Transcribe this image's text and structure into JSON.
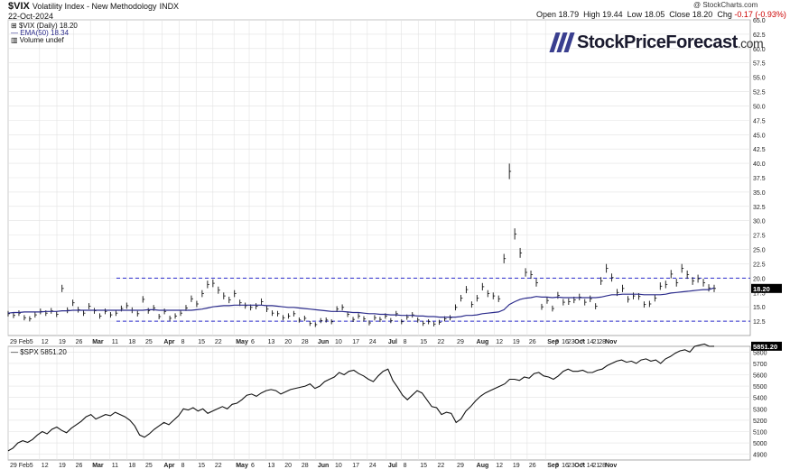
{
  "header": {
    "symbol": "$VIX",
    "name": "Volatility Index - New Methodology",
    "exchange": "INDX",
    "date": "22-Oct-2024",
    "credit": "@ StockCharts.com",
    "ohlc": {
      "open_label": "Open",
      "open": "18.79",
      "high_label": "High",
      "high": "19.44",
      "low_label": "Low",
      "low": "18.05",
      "close_label": "Close",
      "close": "18.20",
      "chg_label": "Chg",
      "chg": "-0.17 (-0.93%)"
    }
  },
  "logo": {
    "text": "StockPriceForecast",
    "suffix": ".com"
  },
  "legend": {
    "vix": "$VIX (Daily) 18.20",
    "ema": "EMA(50) 18.34",
    "volume": "Volume undef",
    "spx": "$SPX 5851.20"
  },
  "colors": {
    "price": "#111111",
    "ema": "#2c2c8c",
    "hline": "#2a2acc",
    "grid": "#e2e2e2",
    "label_bg": "#000000",
    "label_fg": "#ffffff"
  },
  "chart_data": [
    {
      "type": "line",
      "series": [
        {
          "name": "$VIX (Daily)",
          "values": [
            13.8,
            13.5,
            13.9,
            13.1,
            12.9,
            13.6,
            14.2,
            13.9,
            14.3,
            13.7,
            18.2,
            14.4,
            15.7,
            14.5,
            13.9,
            15.1,
            14.3,
            13.4,
            14.2,
            13.6,
            13.9,
            14.7,
            15.2,
            14.4,
            13.8,
            16.3,
            14.3,
            14.8,
            13.3,
            14.2,
            13.0,
            13.4,
            13.9,
            14.8,
            16.4,
            15.5,
            17.3,
            18.9,
            19.1,
            17.9,
            16.9,
            16.2,
            17.3,
            15.7,
            15.2,
            14.9,
            15.1,
            15.9,
            14.6,
            13.9,
            13.8,
            13.1,
            13.4,
            13.8,
            12.7,
            13.0,
            12.1,
            11.9,
            12.6,
            12.7,
            12.4,
            14.6,
            14.9,
            13.7,
            12.8,
            13.4,
            12.9,
            12.2,
            13.1,
            12.8,
            13.4,
            12.6,
            13.8,
            12.4,
            13.2,
            13.6,
            12.7,
            12.1,
            12.4,
            12.0,
            12.3,
            12.9,
            13.1,
            14.9,
            16.5,
            18.0,
            15.4,
            16.5,
            18.5,
            17.3,
            16.9,
            16.4,
            23.4,
            38.6,
            27.7,
            24.4,
            21.0,
            20.6,
            19.2,
            15.0,
            16.1,
            14.7,
            17.0,
            15.8,
            15.9,
            16.2,
            16.7,
            15.8,
            16.4,
            15.1,
            19.5,
            21.7,
            20.1,
            17.5,
            18.2,
            16.3,
            16.9,
            16.8,
            15.4,
            15.5,
            16.5,
            18.6,
            18.9,
            20.7,
            19.2,
            21.7,
            20.6,
            19.5,
            19.9,
            19.2,
            18.3,
            18.2
          ]
        },
        {
          "name": "EMA(50)",
          "values": [
            13.9,
            14.0,
            14.0,
            14.1,
            14.1,
            14.1,
            14.1,
            14.2,
            14.2,
            14.2,
            14.3,
            14.3,
            14.4,
            14.4,
            14.4,
            14.4,
            14.4,
            14.4,
            14.4,
            14.4,
            14.4,
            14.4,
            14.4,
            14.4,
            14.4,
            14.4,
            14.5,
            14.5,
            14.4,
            14.4,
            14.4,
            14.4,
            14.4,
            14.4,
            14.4,
            14.5,
            14.6,
            14.8,
            15.0,
            15.1,
            15.2,
            15.2,
            15.3,
            15.3,
            15.3,
            15.3,
            15.3,
            15.3,
            15.2,
            15.2,
            15.1,
            15.0,
            14.9,
            14.9,
            14.8,
            14.7,
            14.6,
            14.5,
            14.4,
            14.3,
            14.2,
            14.2,
            14.2,
            14.1,
            14.0,
            14.0,
            13.9,
            13.8,
            13.8,
            13.7,
            13.7,
            13.6,
            13.6,
            13.5,
            13.5,
            13.5,
            13.4,
            13.4,
            13.3,
            13.3,
            13.2,
            13.2,
            13.2,
            13.2,
            13.3,
            13.5,
            13.5,
            13.6,
            13.8,
            13.9,
            14.0,
            14.1,
            14.5,
            15.4,
            15.9,
            16.3,
            16.5,
            16.6,
            16.8,
            16.7,
            16.7,
            16.6,
            16.7,
            16.6,
            16.6,
            16.6,
            16.6,
            16.6,
            16.6,
            16.6,
            16.7,
            16.9,
            17.1,
            17.1,
            17.2,
            17.2,
            17.2,
            17.2,
            17.1,
            17.1,
            17.1,
            17.1,
            17.2,
            17.4,
            17.5,
            17.6,
            17.7,
            17.8,
            17.9,
            18.0,
            18.0,
            18.3
          ]
        }
      ],
      "hlines": [
        20.0,
        12.5
      ],
      "ylim": [
        10.0,
        65.0
      ],
      "y_ticks": [
        "12.5",
        "15.0",
        "17.5",
        "20.0",
        "22.5",
        "25.0",
        "27.5",
        "30.0",
        "32.5",
        "35.0",
        "37.5",
        "40.0",
        "42.5",
        "45.0",
        "47.5",
        "50.0",
        "52.5",
        "55.0",
        "57.5",
        "60.0",
        "62.5",
        "65.0"
      ],
      "last_value_label": "18.20",
      "grid": true
    },
    {
      "type": "line",
      "series": [
        {
          "name": "$SPX",
          "values": [
            4930,
            4955,
            5000,
            5020,
            5005,
            5030,
            5070,
            5100,
            5080,
            5120,
            5140,
            5110,
            5090,
            5130,
            5160,
            5190,
            5230,
            5250,
            5210,
            5230,
            5250,
            5240,
            5270,
            5250,
            5230,
            5200,
            5150,
            5070,
            5050,
            5080,
            5120,
            5150,
            5180,
            5160,
            5200,
            5240,
            5300,
            5290,
            5310,
            5280,
            5300,
            5260,
            5280,
            5300,
            5320,
            5300,
            5340,
            5350,
            5380,
            5420,
            5430,
            5410,
            5440,
            5460,
            5470,
            5460,
            5430,
            5450,
            5470,
            5480,
            5490,
            5500,
            5520,
            5480,
            5500,
            5540,
            5560,
            5580,
            5620,
            5600,
            5630,
            5640,
            5610,
            5590,
            5560,
            5540,
            5590,
            5630,
            5650,
            5550,
            5490,
            5420,
            5380,
            5420,
            5460,
            5440,
            5380,
            5320,
            5310,
            5250,
            5270,
            5260,
            5180,
            5210,
            5280,
            5320,
            5370,
            5410,
            5440,
            5460,
            5480,
            5500,
            5520,
            5560,
            5560,
            5550,
            5580,
            5570,
            5610,
            5620,
            5590,
            5580,
            5560,
            5590,
            5630,
            5650,
            5630,
            5630,
            5640,
            5620,
            5620,
            5640,
            5650,
            5680,
            5700,
            5720,
            5730,
            5710,
            5720,
            5700,
            5730,
            5740,
            5720,
            5730,
            5700,
            5740,
            5760,
            5790,
            5810,
            5820,
            5800,
            5850,
            5860,
            5870,
            5850,
            5851
          ]
        }
      ],
      "ylim": [
        4850,
        5850
      ],
      "y_ticks": [
        "4900",
        "5000",
        "5100",
        "5200",
        "5300",
        "5400",
        "5500",
        "5600",
        "5700",
        "5800"
      ],
      "last_value_label": "5851.20",
      "grid": true
    }
  ],
  "x_axis": {
    "labels": [
      {
        "pos": 0.0,
        "label": "29 Feb5",
        "bold": false
      },
      {
        "pos": 0.058,
        "label": "12",
        "bold": false
      },
      {
        "pos": 0.09,
        "label": "19",
        "bold": false
      },
      {
        "pos": 0.121,
        "label": "26",
        "bold": false
      },
      {
        "pos": 0.152,
        "label": "Mar",
        "bold": true
      },
      {
        "pos": 0.188,
        "label": "11",
        "bold": false
      },
      {
        "pos": 0.219,
        "label": "18",
        "bold": false
      },
      {
        "pos": 0.25,
        "label": "25",
        "bold": false
      },
      {
        "pos": 0.284,
        "label": "Apr",
        "bold": true
      },
      {
        "pos": 0.316,
        "label": "8",
        "bold": false
      },
      {
        "pos": 0.347,
        "label": "15",
        "bold": false
      },
      {
        "pos": 0.378,
        "label": "22",
        "bold": false
      },
      {
        "pos": 0.417,
        "label": "May",
        "bold": true
      },
      {
        "pos": 0.445,
        "label": "6",
        "bold": false
      },
      {
        "pos": 0.476,
        "label": "13",
        "bold": false
      },
      {
        "pos": 0.507,
        "label": "20",
        "bold": false
      },
      {
        "pos": 0.538,
        "label": "28",
        "bold": false
      },
      {
        "pos": 0.568,
        "label": "Jun",
        "bold": true
      },
      {
        "pos": 0.6,
        "label": "10",
        "bold": false
      },
      {
        "pos": 0.632,
        "label": "17",
        "bold": false
      },
      {
        "pos": 0.663,
        "label": "24",
        "bold": false
      },
      {
        "pos": 0.698,
        "label": "Jul",
        "bold": true
      },
      {
        "pos": 0.726,
        "label": "8",
        "bold": false
      },
      {
        "pos": 0.757,
        "label": "15",
        "bold": false
      },
      {
        "pos": 0.789,
        "label": "22",
        "bold": false
      },
      {
        "pos": 0.825,
        "label": "29",
        "bold": false
      },
      {
        "pos": 0.861,
        "label": "Aug",
        "bold": true
      },
      {
        "pos": 0.897,
        "label": "12",
        "bold": false
      },
      {
        "pos": 0.928,
        "label": "19",
        "bold": false
      },
      {
        "pos": 0.958,
        "label": "26",
        "bold": false
      },
      {
        "pos": 0.992,
        "label": "Sep",
        "bold": true
      }
    ],
    "labels_tail": [
      {
        "pos": 0.03,
        "label": "9",
        "bold": false
      },
      {
        "pos": 0.08,
        "label": "16",
        "bold": false
      },
      {
        "pos": 0.129,
        "label": "23",
        "bold": false
      },
      {
        "pos": 0.183,
        "label": "Oct",
        "bold": true
      },
      {
        "pos": 0.232,
        "label": "7",
        "bold": false
      },
      {
        "pos": 0.281,
        "label": "14",
        "bold": false
      },
      {
        "pos": 0.33,
        "label": "21",
        "bold": false
      },
      {
        "pos": 0.379,
        "label": "28",
        "bold": false
      },
      {
        "pos": 0.429,
        "label": "Nov",
        "bold": true
      }
    ]
  }
}
